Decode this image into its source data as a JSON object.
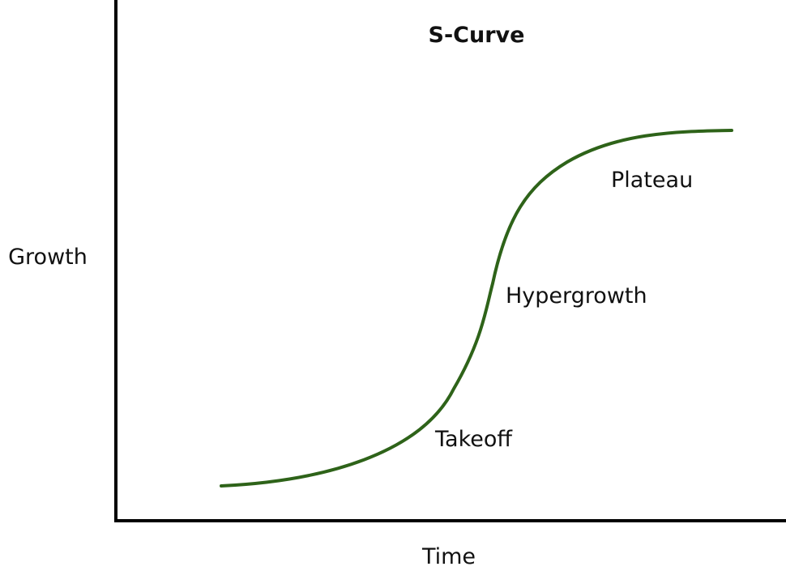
{
  "title": "S-Curve",
  "x_axis_label": "Time",
  "y_axis_label": "Growth",
  "curve_color": "#2e6319",
  "axis_color": "#000000",
  "phases": {
    "takeoff": "Takeoff",
    "hypergrowth": "Hypergrowth",
    "plateau": "Plateau"
  }
}
